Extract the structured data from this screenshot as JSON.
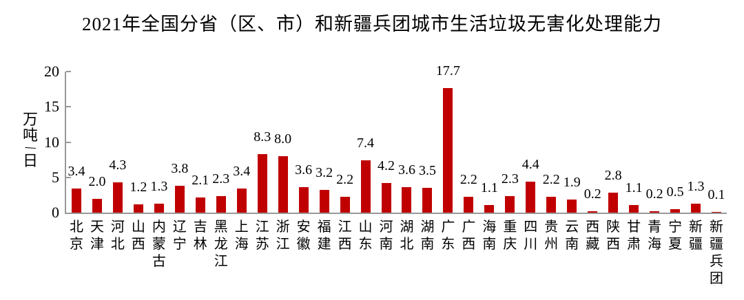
{
  "chart_data": {
    "type": "bar",
    "title": "2021年全国分省（区、市）和新疆兵团城市生活垃圾无害化处理能力",
    "ylabel": "万吨/日",
    "xlabel": "",
    "ylim": [
      0,
      20
    ],
    "yticks": [
      0,
      5,
      10,
      15,
      20
    ],
    "grid": false,
    "legend": false,
    "value_labels": true,
    "value_label_decimals": 1,
    "categories": [
      "北京",
      "天津",
      "河北",
      "山西",
      "内蒙古",
      "辽宁",
      "吉林",
      "黑龙江",
      "上海",
      "江苏",
      "浙江",
      "安徽",
      "福建",
      "江西",
      "山东",
      "河南",
      "湖北",
      "湖南",
      "广东",
      "广西",
      "海南",
      "重庆",
      "四川",
      "贵州",
      "云南",
      "西藏",
      "陕西",
      "甘肃",
      "青海",
      "宁夏",
      "新疆",
      "新疆兵团"
    ],
    "values": [
      3.4,
      2.0,
      4.3,
      1.2,
      1.3,
      3.8,
      2.1,
      2.3,
      3.4,
      8.3,
      8.0,
      3.6,
      3.2,
      2.2,
      7.4,
      4.2,
      3.6,
      3.5,
      17.7,
      2.2,
      1.1,
      2.3,
      4.4,
      2.2,
      1.9,
      0.2,
      2.8,
      1.1,
      0.2,
      0.5,
      1.3,
      0.1
    ],
    "colors": {
      "bar": "#c00000",
      "axis": "#989898",
      "text": "#000000",
      "background": "#ffffff"
    }
  }
}
